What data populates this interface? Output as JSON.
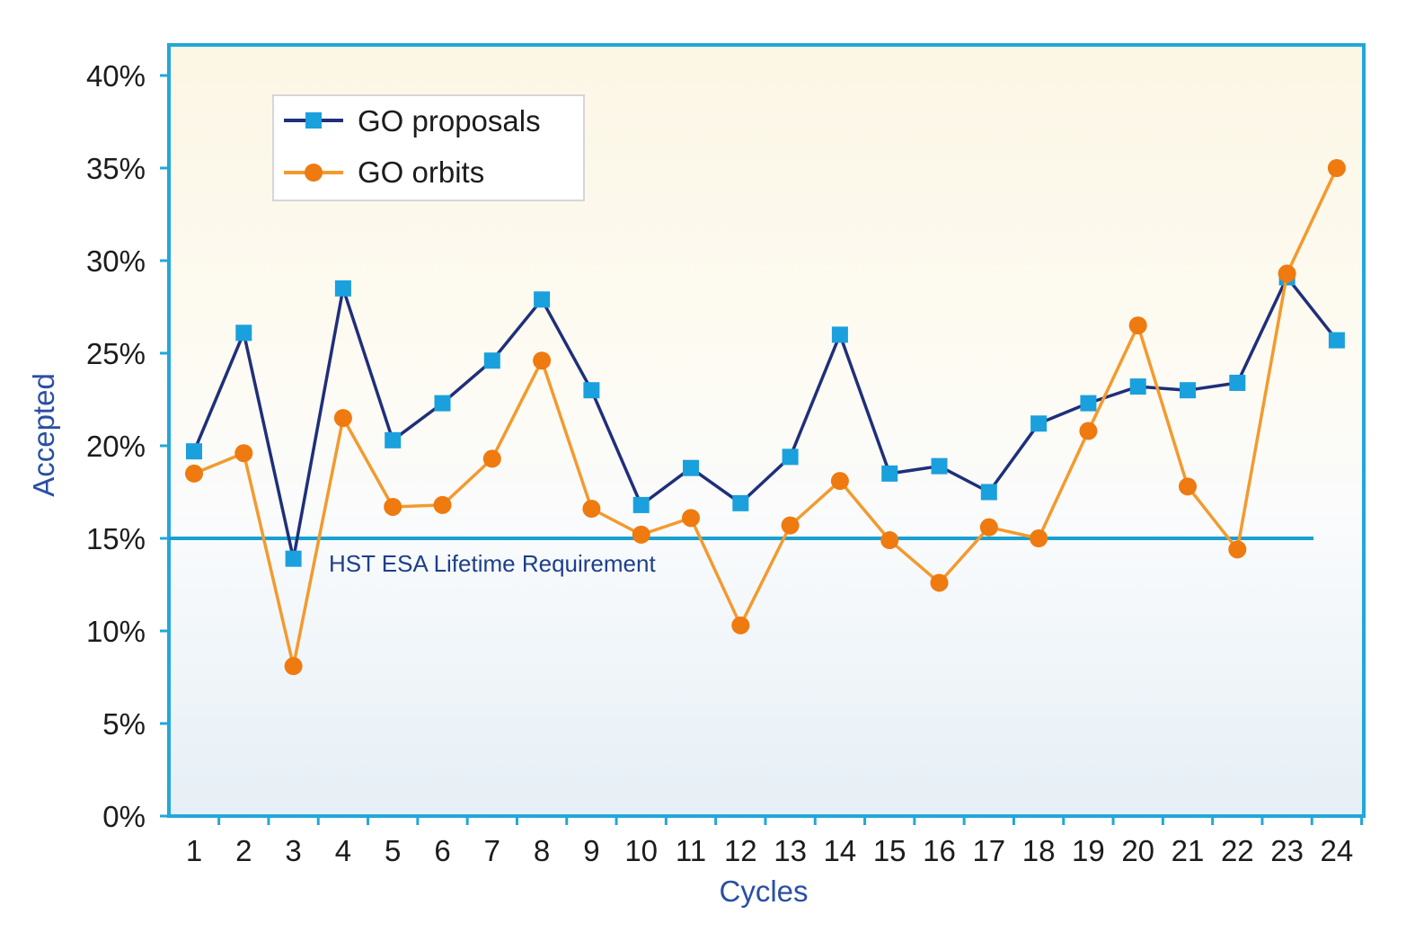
{
  "chart_data": {
    "type": "line",
    "xlabel": "Cycles",
    "ylabel": "Accepted",
    "categories": [
      "1",
      "2",
      "3",
      "4",
      "5",
      "6",
      "7",
      "8",
      "9",
      "10",
      "11",
      "12",
      "13",
      "14",
      "15",
      "16",
      "17",
      "18",
      "19",
      "20",
      "21",
      "22",
      "23",
      "24"
    ],
    "y_ticks": [
      "0%",
      "5%",
      "10%",
      "15%",
      "20%",
      "25%",
      "30%",
      "35%",
      "40%"
    ],
    "ylim": [
      0,
      40
    ],
    "series": [
      {
        "name": "GO proposals",
        "color": "#1f2f7a",
        "marker": "square",
        "marker_color": "#1aa0dd",
        "values": [
          19.7,
          26.1,
          13.9,
          28.5,
          20.3,
          22.3,
          24.6,
          27.9,
          23.0,
          16.8,
          18.8,
          16.9,
          19.4,
          26.0,
          18.5,
          18.9,
          17.5,
          21.2,
          22.3,
          23.2,
          23.0,
          23.4,
          29.1,
          25.7
        ]
      },
      {
        "name": "GO orbits",
        "color": "#f39a2e",
        "marker": "circle",
        "marker_color": "#ef7a10",
        "values": [
          18.5,
          19.6,
          8.1,
          21.5,
          16.7,
          16.8,
          19.3,
          24.6,
          16.6,
          15.2,
          16.1,
          10.3,
          15.7,
          18.1,
          14.9,
          12.6,
          15.6,
          15.0,
          20.8,
          26.5,
          17.8,
          14.4,
          29.3,
          35.0
        ]
      }
    ],
    "reference_line": {
      "value": 15,
      "label": "HST ESA Lifetime Requirement",
      "color": "#1aa0d0"
    },
    "legend": {
      "position": "top-left"
    },
    "grid": false
  }
}
